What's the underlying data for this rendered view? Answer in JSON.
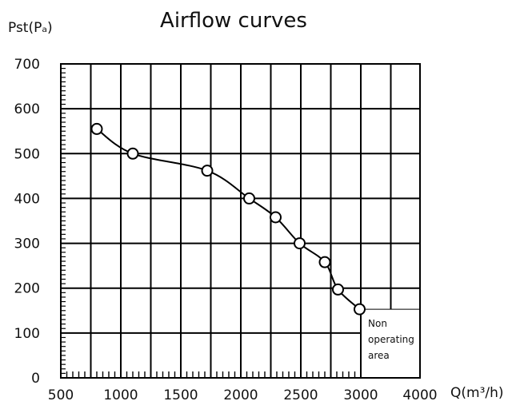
{
  "chart_data": {
    "type": "line",
    "title": "Airflow curves",
    "xlabel": "Q(m³/h)",
    "ylabel": "Pst(Pₐ)",
    "xlim": [
      500,
      4000
    ],
    "ylim": [
      0,
      700
    ],
    "x_ticks": [
      "500",
      "1000",
      "1500",
      "2000",
      "2500",
      "3000",
      "4000"
    ],
    "y_ticks": [
      "0",
      "100",
      "200",
      "300",
      "400",
      "500",
      "600",
      "700"
    ],
    "grid": true,
    "marker": "open-circle",
    "x": [
      800,
      1100,
      1720,
      2070,
      2290,
      2490,
      2700,
      2810,
      2990
    ],
    "y": [
      555,
      500,
      462,
      400,
      358,
      300,
      258,
      197,
      153
    ],
    "annotation": {
      "lines": [
        "Non",
        "operating",
        "area"
      ]
    }
  }
}
